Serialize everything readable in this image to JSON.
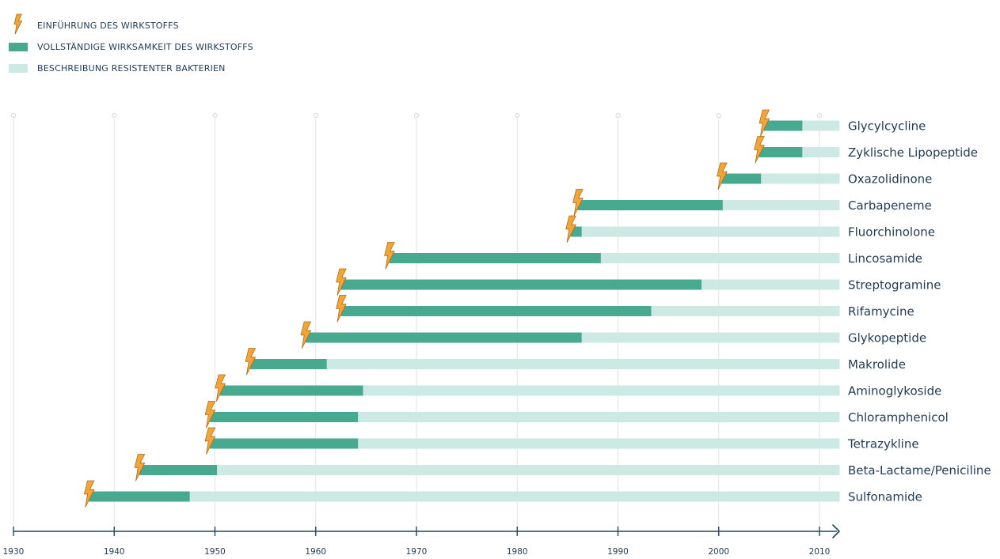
{
  "colors": {
    "effective": "#47a98f",
    "resistant": "#cde9e3",
    "bolt_fill": "#f2a63a",
    "bolt_stroke": "#b66a12",
    "axis": "#234668",
    "grid": "#e2e2e2",
    "text": "#1f3b57"
  },
  "legend": {
    "intro_label": "EINFÜHRUNG DES WIRKSTOFFS",
    "effective_label": "VOLLSTÄNDIGE WIRKSAMKEIT DES WIRKSTOFFS",
    "resistant_label": "BESCHREIBUNG RESISTENTER BAKTERIEN"
  },
  "chart_data": {
    "type": "bar",
    "orientation": "horizontal-timeline",
    "xlim": [
      1930,
      2012
    ],
    "x_ticks": [
      1930,
      1940,
      1950,
      1960,
      1970,
      1980,
      1990,
      2000,
      2010
    ],
    "grid": true,
    "legend_position": "top-left",
    "series": [
      {
        "name": "EINFÜHRUNG DES WIRKSTOFFS"
      },
      {
        "name": "VOLLSTÄNDIGE WIRKSAMKEIT DES WIRKSTOFFS"
      },
      {
        "name": "BESCHREIBUNG RESISTENTER BAKTERIEN"
      }
    ],
    "categories": [
      "Glycylcycline",
      "Zyklische Lipopeptide",
      "Oxazolidinone",
      "Carbapeneme",
      "Fluorchinolone",
      "Lincosamide",
      "Streptogramine",
      "Rifamycine",
      "Glykopeptide",
      "Makrolide",
      "Aminoglykoside",
      "Chloramphenicol",
      "Tetrazykline",
      "Beta-Lactame/Peniciline",
      "Sulfonamide"
    ],
    "introduction": [
      2004.5,
      2004.0,
      2000.3,
      1986.0,
      1985.3,
      1967.3,
      1962.5,
      1962.5,
      1959.0,
      1953.5,
      1950.5,
      1949.5,
      1949.5,
      1942.5,
      1937.5
    ],
    "resistance": [
      2008.3,
      2008.3,
      2004.2,
      2000.4,
      1986.4,
      1988.3,
      1998.3,
      1993.3,
      1986.4,
      1961.1,
      1964.7,
      1964.2,
      1964.2,
      1950.2,
      1947.5
    ],
    "end": [
      2012,
      2012,
      2012,
      2012,
      2012,
      2012,
      2012,
      2012,
      2012,
      2012,
      2012,
      2012,
      2012,
      2012,
      2012
    ]
  }
}
